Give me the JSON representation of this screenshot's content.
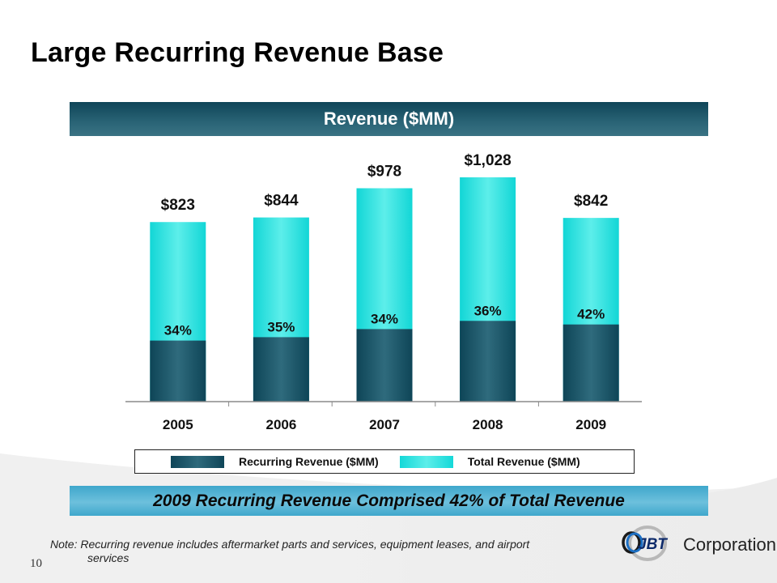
{
  "slide": {
    "title": "Large Recurring Revenue Base",
    "page_number": "10"
  },
  "chart_header": "Revenue ($MM)",
  "chart_data": {
    "type": "bar",
    "stacked_overlay": true,
    "title": "Revenue ($MM)",
    "xlabel": "",
    "ylabel": "",
    "categories": [
      "2005",
      "2006",
      "2007",
      "2008",
      "2009"
    ],
    "series": [
      {
        "name": "Recurring Revenue ($MM)",
        "percent_of_total": [
          34,
          35,
          34,
          36,
          42
        ],
        "color": "#1d5568"
      },
      {
        "name": "Total Revenue ($MM)",
        "values": [
          823,
          844,
          978,
          1028,
          842
        ],
        "color": "#2fe0dc"
      }
    ],
    "total_labels": [
      "$823",
      "$844",
      "$978",
      "$1,028",
      "$842"
    ],
    "percent_labels": [
      "34%",
      "35%",
      "34%",
      "36%",
      "42%"
    ],
    "ylim": [
      0,
      1028
    ],
    "grid": false,
    "legend_position": "bottom"
  },
  "legend": {
    "items": [
      {
        "label": "Recurring Revenue ($MM)",
        "color": "#1d5568"
      },
      {
        "label": "Total Revenue ($MM)",
        "color": "#2fe0dc"
      }
    ]
  },
  "callout": "2009 Recurring Revenue Comprised 42% of Total Revenue",
  "note": {
    "prefix": "Note:",
    "line1": "Recurring revenue includes aftermarket parts and services, equipment leases, and airport",
    "line2": "services"
  },
  "logo": {
    "mark": "JBT",
    "text": "Corporation"
  }
}
